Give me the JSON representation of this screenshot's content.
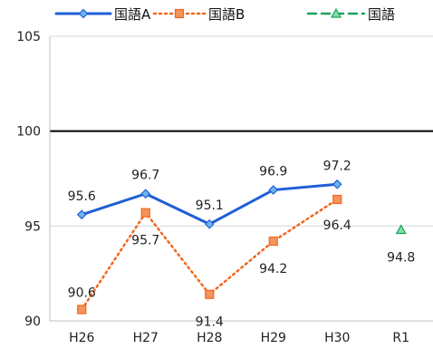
{
  "chart_data": {
    "type": "line",
    "title": "",
    "xlabel": "",
    "ylabel": "",
    "categories": [
      "H26",
      "H27",
      "H28",
      "H29",
      "H30",
      "R1"
    ],
    "ylim": [
      90,
      105
    ],
    "yticks": [
      90,
      95,
      100,
      105
    ],
    "reference_line": 100,
    "grid": "horizontal",
    "legend_position": "top",
    "series": [
      {
        "name": "国語A",
        "values": [
          95.6,
          96.7,
          95.1,
          96.9,
          97.2,
          null
        ],
        "labels": [
          "95.6",
          "96.7",
          "95.1",
          "96.9",
          "97.2",
          ""
        ],
        "color": "#1f5fd6",
        "style": "solid",
        "marker": "diamond"
      },
      {
        "name": "国語B",
        "values": [
          90.6,
          95.7,
          91.4,
          94.2,
          96.4,
          null
        ],
        "labels": [
          "90.6",
          "95.7",
          "91.4",
          "94.2",
          "96.4",
          ""
        ],
        "color": "#f0681e",
        "style": "dotted",
        "marker": "square"
      },
      {
        "name": "国語",
        "values": [
          null,
          null,
          null,
          null,
          null,
          94.8
        ],
        "labels": [
          "",
          "",
          "",
          "",
          "",
          "94.8"
        ],
        "color": "#1aa35a",
        "style": "dashed",
        "marker": "triangle"
      }
    ]
  }
}
